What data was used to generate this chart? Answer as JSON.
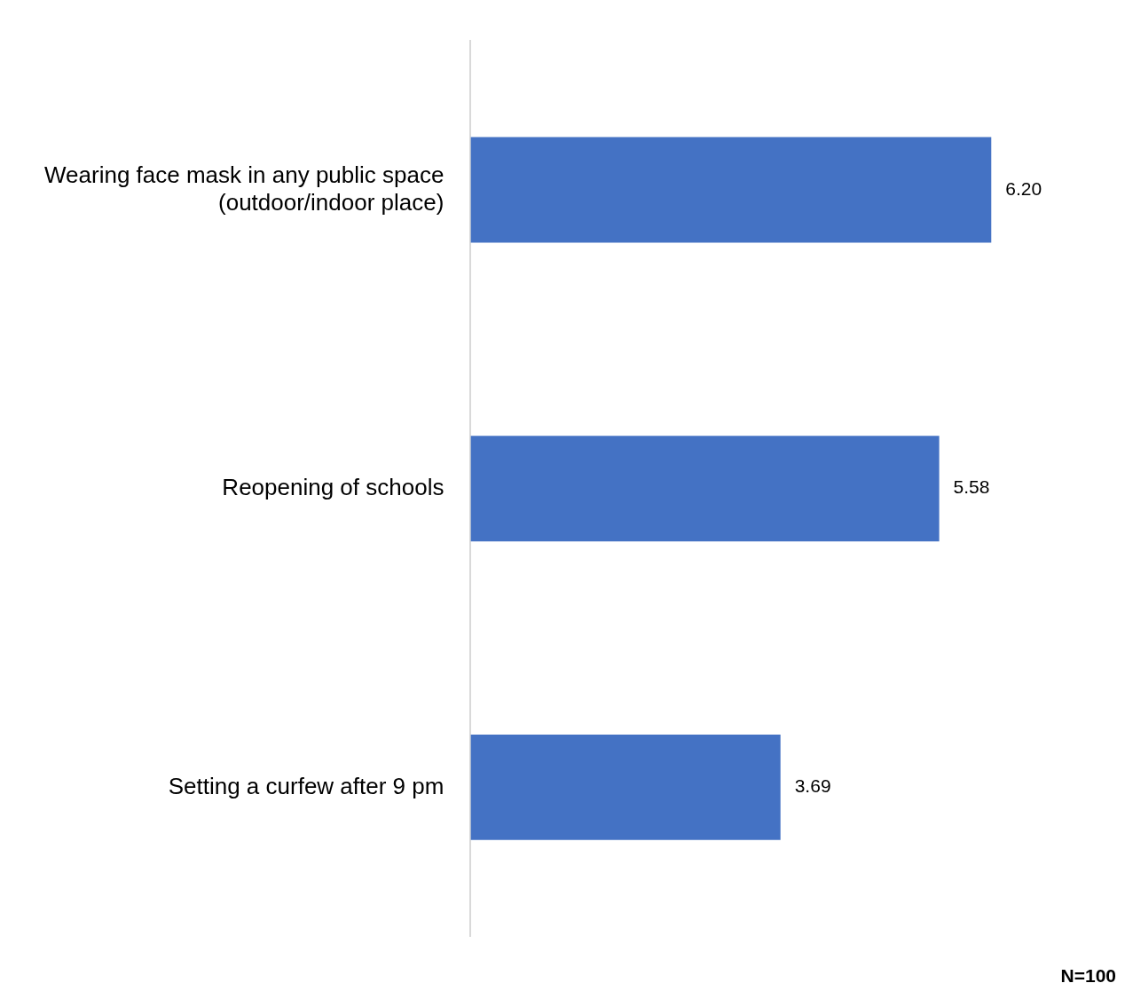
{
  "chart_data": {
    "type": "bar",
    "orientation": "horizontal",
    "categories": [
      "Wearing face mask in any public space (outdoor/indoor place)",
      "Reopening of schools",
      "Setting a curfew after 9 pm"
    ],
    "values": [
      6.2,
      5.58,
      3.69
    ],
    "value_labels": [
      "6.20",
      "5.58",
      "3.69"
    ],
    "color": "#4472c4",
    "grid": false,
    "legend": false,
    "tick_labels": "y",
    "annotations": [
      "N=100"
    ]
  }
}
